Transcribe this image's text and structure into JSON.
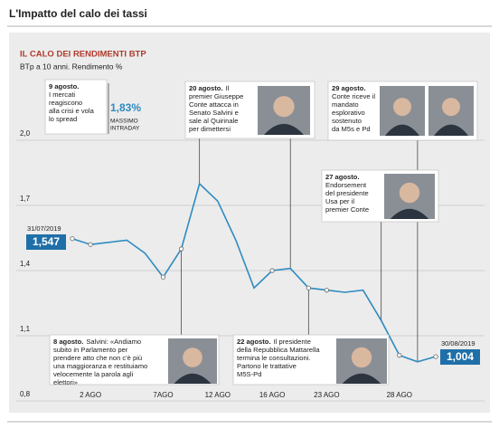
{
  "header": {
    "title": "L'Impatto del calo dei tassi"
  },
  "chart_data": {
    "type": "line",
    "title": "IL CALO DEI RENDIMENTI BTP",
    "subtitle": "BTp a 10 anni. Rendimento %",
    "categories": [
      null,
      "2 AGO",
      null,
      null,
      null,
      "7AGO",
      null,
      null,
      "12 AGO",
      null,
      null,
      "16 AGO",
      null,
      null,
      "23 AGO",
      null,
      null,
      null,
      "28 AGO",
      null,
      null
    ],
    "values": [
      1.547,
      1.52,
      1.53,
      1.54,
      1.48,
      1.37,
      1.5,
      1.8,
      1.72,
      1.54,
      1.32,
      1.4,
      1.41,
      1.32,
      1.31,
      1.3,
      1.31,
      1.17,
      1.01,
      0.98,
      1.004
    ],
    "value_labels": [
      "1,547",
      null,
      null,
      null,
      null,
      null,
      null,
      null,
      null,
      null,
      null,
      null,
      null,
      null,
      null,
      null,
      null,
      null,
      null,
      null,
      "1,004"
    ],
    "start_date": "31/07/2019",
    "end_date": "30/08/2019",
    "color": "#2e8bc0",
    "ylim": [
      0.8,
      2.2
    ],
    "yticks": [
      {
        "value": 0.8,
        "label": "0,8"
      },
      {
        "value": 1.1,
        "label": "1,1"
      },
      {
        "value": 1.4,
        "label": "1,4"
      },
      {
        "value": 1.7,
        "label": "1,7"
      },
      {
        "value": 2.0,
        "label": "2,0"
      }
    ],
    "grid": true,
    "peak_label": "1,83%",
    "peak_note": [
      "MASSIMO",
      "INTRADAY"
    ],
    "annotations": [
      {
        "date": "9 agosto.",
        "lines": [
          "I mercati",
          "reagiscono",
          "alla crisi e vola",
          "lo spread"
        ]
      },
      {
        "date": "20 agosto.",
        "lines": [
          "Il",
          "premier Giuseppe",
          "Conte attacca in",
          "Senato Salvini e",
          "sale al Quirinale",
          "per dimettersi"
        ]
      },
      {
        "date": "29 agosto.",
        "lines": [
          "Conte riceve il",
          "mandato",
          "esplorativo",
          "sostenuto",
          "da M5s e Pd"
        ]
      },
      {
        "date": "27 agosto.",
        "lines": [
          "Endorsement",
          "del presidente",
          "Usa per il",
          "premier Conte"
        ]
      },
      {
        "date": "8 agosto.",
        "lines": [
          "Salvini: «Andiamo",
          "subito in Parlamento per",
          "prendere atto che non c'è più",
          "una maggioranza e restituiamo",
          "velocemente la parola agli",
          "elettori»"
        ]
      },
      {
        "date": "22 agosto.",
        "lines": [
          "Il presidente",
          "della Repubblica Mattarella",
          "termina le consultazioni.",
          "Partono le trattative",
          "M5S-Pd"
        ]
      }
    ]
  }
}
